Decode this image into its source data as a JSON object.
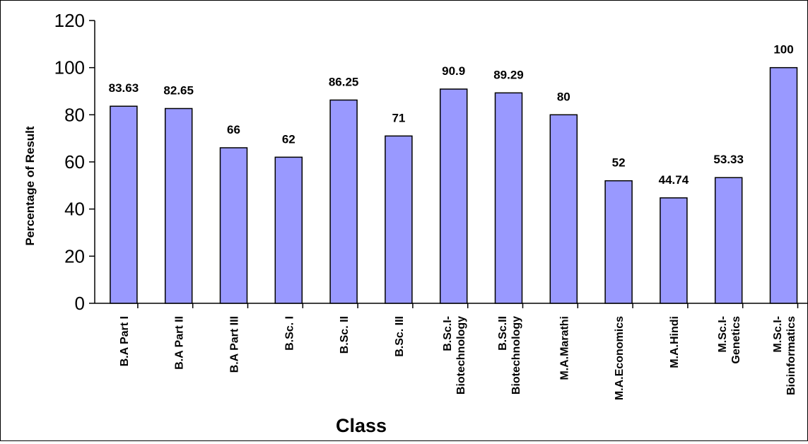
{
  "chart_data": {
    "type": "bar",
    "title": "",
    "xlabel": "Class",
    "ylabel": "Percentage of Result",
    "ylim": [
      0,
      120
    ],
    "yticks": [
      0,
      20,
      40,
      60,
      80,
      100,
      120
    ],
    "grid": false,
    "legend": "none",
    "bar_color": "#9999ff",
    "bar_stroke": "#000000",
    "categories": [
      [
        "B.A Part I"
      ],
      [
        "B.A Part II"
      ],
      [
        "B.A Part III"
      ],
      [
        "B.Sc. I"
      ],
      [
        "B.Sc. II"
      ],
      [
        "B.Sc. III"
      ],
      [
        "B.Sc.I-",
        "Biotechnology"
      ],
      [
        "B.Sc.II",
        "Biotechnology"
      ],
      [
        "M.A.Marathi"
      ],
      [
        "M.A.Economics"
      ],
      [
        "M.A.Hindi"
      ],
      [
        "M.Sc.I-",
        "Genetics"
      ],
      [
        "M.Sc.I-",
        "Bioinformatics"
      ]
    ],
    "values": [
      83.63,
      82.65,
      66,
      62,
      86.25,
      71,
      90.9,
      89.29,
      80,
      52,
      44.74,
      53.33,
      100
    ],
    "data_labels": [
      "83.63",
      "82.65",
      "66",
      "62",
      "86.25",
      "71",
      "90.9",
      "89.29",
      "80",
      "52",
      "44.74",
      "53.33",
      "100"
    ]
  }
}
